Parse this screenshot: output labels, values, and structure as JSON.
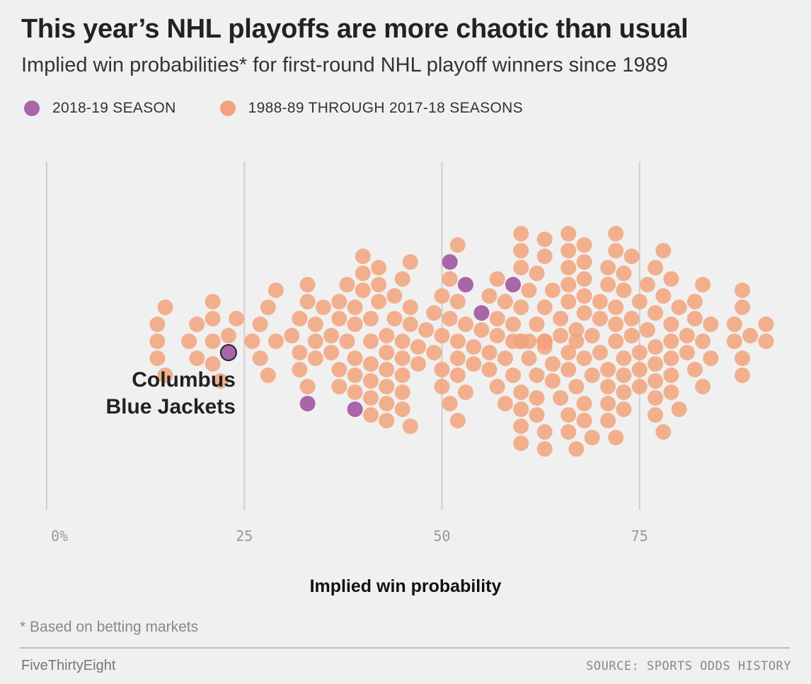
{
  "chart_data": {
    "type": "scatter",
    "subtype": "beeswarm",
    "title": "This year’s NHL playoffs are more chaotic than usual",
    "subtitle": "Implied win probabilities* for first-round NHL playoff winners since 1989",
    "xlabel": "Implied win probability",
    "xlim": [
      0,
      100
    ],
    "x_ticks": [
      {
        "value": 0,
        "label": "0%"
      },
      {
        "value": 25,
        "label": "25"
      },
      {
        "value": 50,
        "label": "50"
      },
      {
        "value": 75,
        "label": "75"
      }
    ],
    "grid": "vertical",
    "legend": [
      {
        "label": "2018-19 SEASON",
        "color": "#a865a8"
      },
      {
        "label": "1988-89 THROUGH 2017-18 SEASONS",
        "color": "#f2a37c"
      }
    ],
    "series": [
      {
        "name": "2018-19 SEASON",
        "color": "#a865a8",
        "values": [
          23,
          33,
          39,
          51,
          53,
          55,
          59
        ]
      },
      {
        "name": "1988-89 THROUGH 2017-18 SEASONS",
        "color": "#f2a37c",
        "values": [
          14,
          14,
          14,
          15,
          15,
          18,
          19,
          19,
          21,
          21,
          21,
          21,
          22,
          23,
          24,
          26,
          27,
          27,
          28,
          28,
          29,
          29,
          31,
          32,
          32,
          32,
          33,
          33,
          33,
          34,
          34,
          34,
          35,
          36,
          36,
          37,
          37,
          37,
          37,
          38,
          38,
          39,
          39,
          39,
          39,
          39,
          40,
          40,
          40,
          41,
          41,
          41,
          41,
          41,
          41,
          42,
          42,
          42,
          43,
          43,
          43,
          43,
          43,
          43,
          44,
          44,
          45,
          45,
          45,
          45,
          45,
          45,
          46,
          46,
          46,
          46,
          47,
          47,
          48,
          49,
          49,
          50,
          50,
          50,
          50,
          51,
          51,
          51,
          52,
          52,
          52,
          52,
          52,
          52,
          53,
          53,
          54,
          54,
          55,
          56,
          56,
          56,
          57,
          57,
          57,
          57,
          58,
          58,
          58,
          59,
          59,
          59,
          60,
          60,
          60,
          60,
          60,
          60,
          60,
          60,
          60,
          60,
          61,
          61,
          61,
          62,
          62,
          62,
          62,
          62,
          63,
          63,
          63,
          63,
          63,
          63,
          63,
          63,
          63,
          63,
          63,
          63,
          63,
          63,
          64,
          64,
          64,
          65,
          65,
          65,
          66,
          66,
          66,
          66,
          66,
          66,
          66,
          66,
          66,
          67,
          67,
          67,
          67,
          68,
          68,
          68,
          68,
          68,
          68,
          68,
          68,
          69,
          69,
          69,
          70,
          70,
          70,
          71,
          71,
          71,
          71,
          71,
          71,
          72,
          72,
          72,
          72,
          72,
          72,
          73,
          73,
          73,
          73,
          73,
          73,
          74,
          74,
          74,
          75,
          75,
          75,
          75,
          76,
          76,
          77,
          77,
          77,
          77,
          77,
          77,
          77,
          78,
          78,
          78,
          79,
          79,
          79,
          79,
          79,
          79,
          80,
          80,
          81,
          81,
          82,
          82,
          82,
          83,
          83,
          83,
          84,
          84,
          87,
          87,
          88,
          88,
          88,
          88,
          89,
          91,
          91
        ]
      }
    ],
    "annotations": [
      {
        "text_line1": "Columbus",
        "text_line2": "Blue Jackets",
        "x": 23,
        "series": "2018-19 SEASON"
      }
    ]
  },
  "footnote": "* Based on betting markets",
  "brand": "FiveThirtyEight",
  "source": "SOURCE: SPORTS ODDS HISTORY"
}
